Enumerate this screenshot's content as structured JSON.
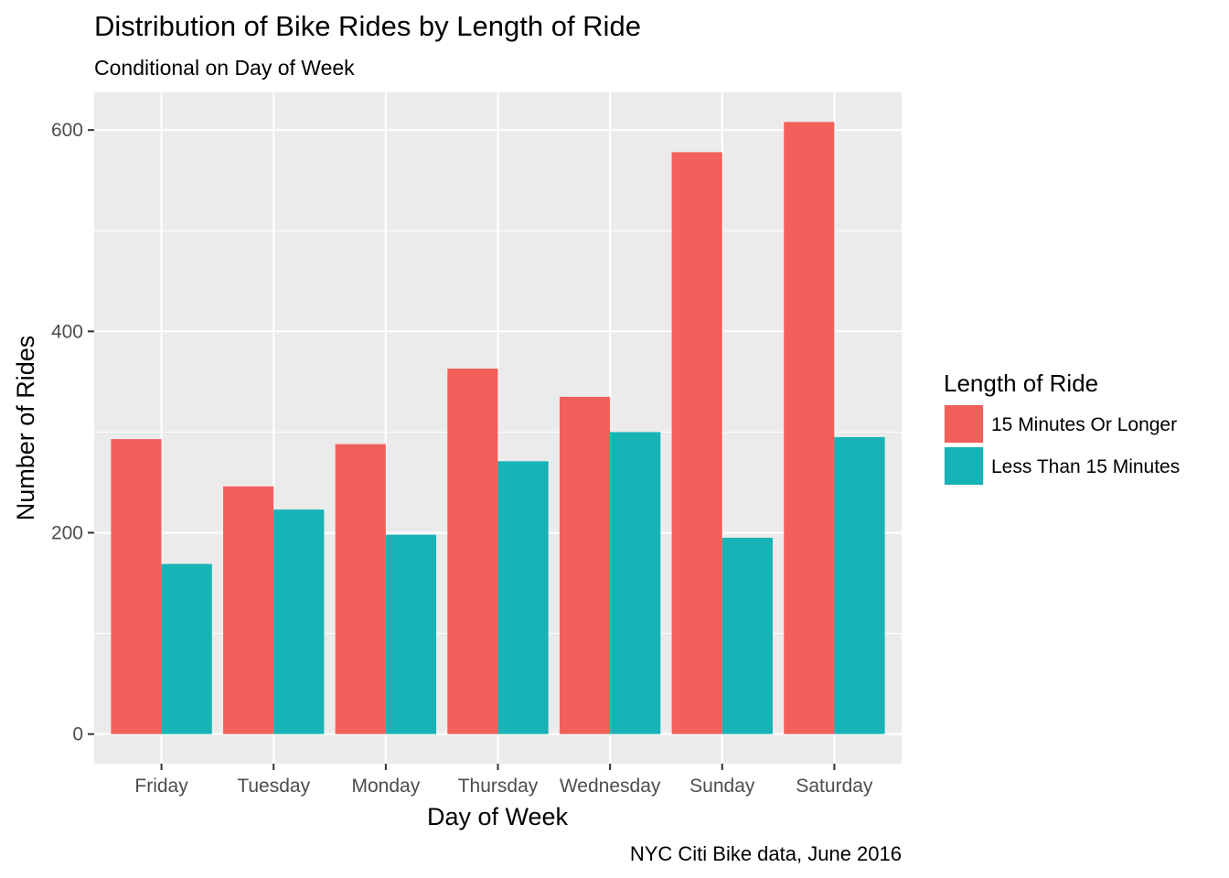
{
  "chart_data": {
    "type": "bar",
    "title": "Distribution of Bike Rides by Length of Ride",
    "subtitle": "Conditional on Day of Week",
    "caption": "NYC Citi Bike data, June 2016",
    "xlabel": "Day of Week",
    "ylabel": "Number of Rides",
    "categories": [
      "Friday",
      "Tuesday",
      "Monday",
      "Thursday",
      "Wednesday",
      "Sunday",
      "Saturday"
    ],
    "series": [
      {
        "name": "15 Minutes Or Longer",
        "color": "#F2605B",
        "values": [
          293,
          246,
          288,
          363,
          335,
          578,
          608
        ]
      },
      {
        "name": "Less Than 15 Minutes",
        "color": "#18B3B7",
        "values": [
          169,
          223,
          198,
          271,
          300,
          195,
          295
        ]
      }
    ],
    "ylim": [
      -29.4,
      637.4
    ],
    "yticks": [
      0,
      200,
      400,
      600
    ],
    "grid": true,
    "legend": {
      "title": "Length of Ride",
      "position": "right"
    }
  }
}
